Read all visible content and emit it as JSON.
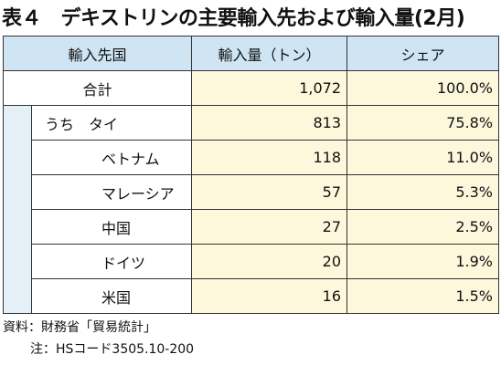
{
  "title": "表４　デキストリンの主要輸入先および輸入量(2月)",
  "headers": {
    "country": "輸入先国",
    "volume": "輸入量（トン）",
    "share": "シェア"
  },
  "total": {
    "name": "合計",
    "volume": "1,072",
    "share": "100.0%"
  },
  "rows": [
    {
      "name": "うち　タイ",
      "volume": "813",
      "share": "75.8%"
    },
    {
      "name": "ベトナム",
      "volume": "118",
      "share": "11.0%"
    },
    {
      "name": "マレーシア",
      "volume": "57",
      "share": "5.3%"
    },
    {
      "name": "中国",
      "volume": "27",
      "share": "2.5%"
    },
    {
      "name": "ドイツ",
      "volume": "20",
      "share": "1.9%"
    },
    {
      "name": "米国",
      "volume": "16",
      "share": "1.5%"
    }
  ],
  "notes": {
    "source": "資料：財務省「貿易統計」",
    "note": "注：HSコード3505.10-200"
  }
}
